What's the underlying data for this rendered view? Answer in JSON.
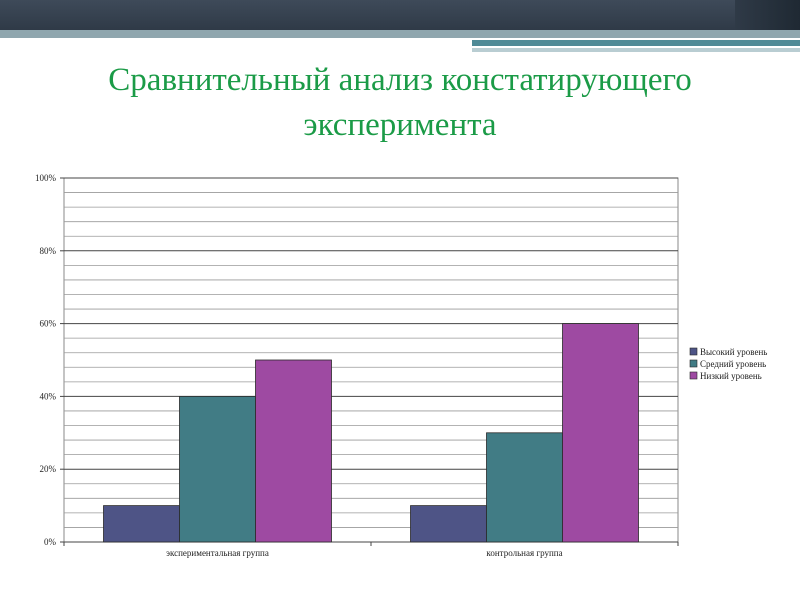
{
  "slide": {
    "title": "Сравнительный анализ констатирующего эксперимента"
  },
  "chart_data": {
    "type": "bar",
    "title": "",
    "xlabel": "",
    "ylabel": "",
    "categories": [
      "экспериментальная группа",
      "контрольная группа"
    ],
    "series": [
      {
        "name": "Высокий уровень",
        "values": [
          10,
          10
        ],
        "color": "#4e5486"
      },
      {
        "name": "Средний уровень",
        "values": [
          40,
          30
        ],
        "color": "#417c85"
      },
      {
        "name": "Низкий уровень",
        "values": [
          50,
          60
        ],
        "color": "#9e4aa2"
      }
    ],
    "ylim": [
      0,
      100
    ],
    "yticks": [
      "0%",
      "20%",
      "40%",
      "60%",
      "80%",
      "100%"
    ],
    "grid": true,
    "legend_position": "right"
  }
}
